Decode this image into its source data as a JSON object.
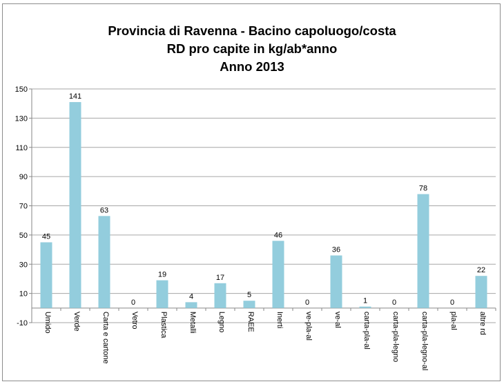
{
  "chart_data": {
    "type": "bar",
    "title_lines": [
      "Provincia di Ravenna - Bacino capoluogo/costa",
      "RD pro capite in kg/ab*anno",
      "Anno 2013"
    ],
    "categories": [
      "Umido",
      "Verde",
      "Carta e cartone",
      "Vetro",
      "Plastica",
      "Metalli",
      "Legno",
      "RAEE",
      "Inerti",
      "ve-pla-al",
      "ve-al",
      "carta-pla-al",
      "carta-pla-legno",
      "carta-pla-legno-al",
      "pla-al",
      "altre rd"
    ],
    "values": [
      45,
      141,
      63,
      0,
      19,
      4,
      17,
      5,
      46,
      0,
      36,
      1,
      0,
      78,
      0,
      22
    ],
    "data_labels": [
      "45",
      "141",
      "63",
      "0",
      "19",
      "4",
      "17",
      "5",
      "46",
      "0",
      "36",
      "1",
      "0",
      "78",
      "0",
      "22"
    ],
    "ylim": [
      -10,
      150
    ],
    "yticks": [
      -10,
      10,
      30,
      50,
      70,
      90,
      110,
      130,
      150
    ],
    "xlabel": "",
    "ylabel": "",
    "grid": true,
    "legend": "none",
    "bar_color": "#93CDDD",
    "grid_color": "#a6a6a6"
  }
}
